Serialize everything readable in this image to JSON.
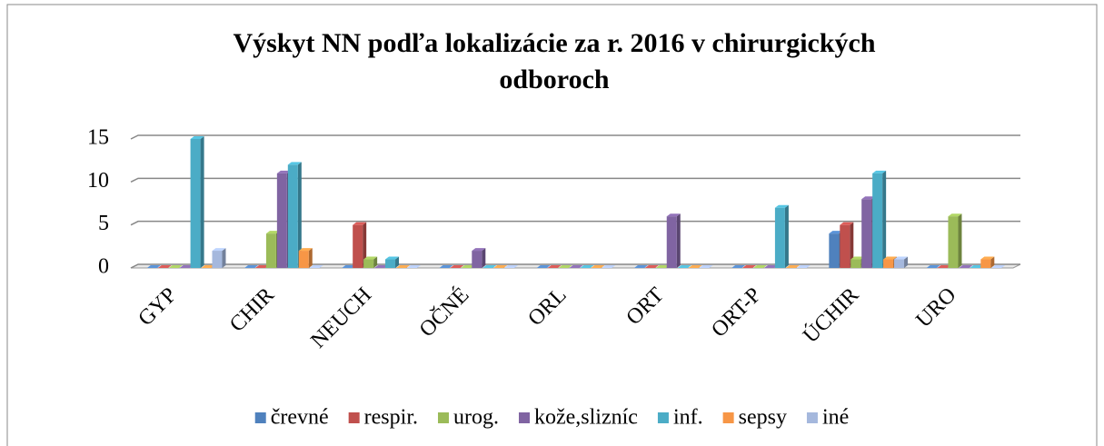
{
  "chart_data": {
    "type": "bar",
    "title": "Výskyt NN podľa lokalizácie za r. 2016 v chirurgických odboroch",
    "categories": [
      "GYP",
      "CHIR",
      "NEUCH",
      "OČNÉ",
      "ORL",
      "ORT",
      "ORT-P",
      "ÚCHIR",
      "URO"
    ],
    "series": [
      {
        "name": "črevné",
        "color": "#4f81bd",
        "values": [
          0,
          0,
          0,
          0,
          0,
          0,
          0,
          4,
          0
        ]
      },
      {
        "name": "respir.",
        "color": "#c0504d",
        "values": [
          0,
          0,
          5,
          0,
          0,
          0,
          0,
          5,
          0
        ]
      },
      {
        "name": "urog.",
        "color": "#9bbb59",
        "values": [
          0,
          4,
          1,
          0,
          0,
          0,
          0,
          1,
          6
        ]
      },
      {
        "name": "kože,slizníc",
        "color": "#8064a2",
        "values": [
          0,
          11,
          0,
          2,
          0,
          6,
          0,
          8,
          0
        ]
      },
      {
        "name": "inf.",
        "color": "#4bacc6",
        "values": [
          15,
          12,
          1,
          0,
          0,
          0,
          7,
          11,
          0
        ]
      },
      {
        "name": "sepsy",
        "color": "#f79646",
        "values": [
          0,
          2,
          0,
          0,
          0,
          0,
          0,
          1,
          1
        ]
      },
      {
        "name": "iné",
        "color": "#a5b8dd",
        "values": [
          2,
          0,
          0,
          0,
          0,
          0,
          0,
          1,
          0
        ]
      }
    ],
    "ylim": [
      0,
      15
    ],
    "yticks": [
      0,
      5,
      10,
      15
    ],
    "grid": true,
    "legend": "bottom"
  }
}
